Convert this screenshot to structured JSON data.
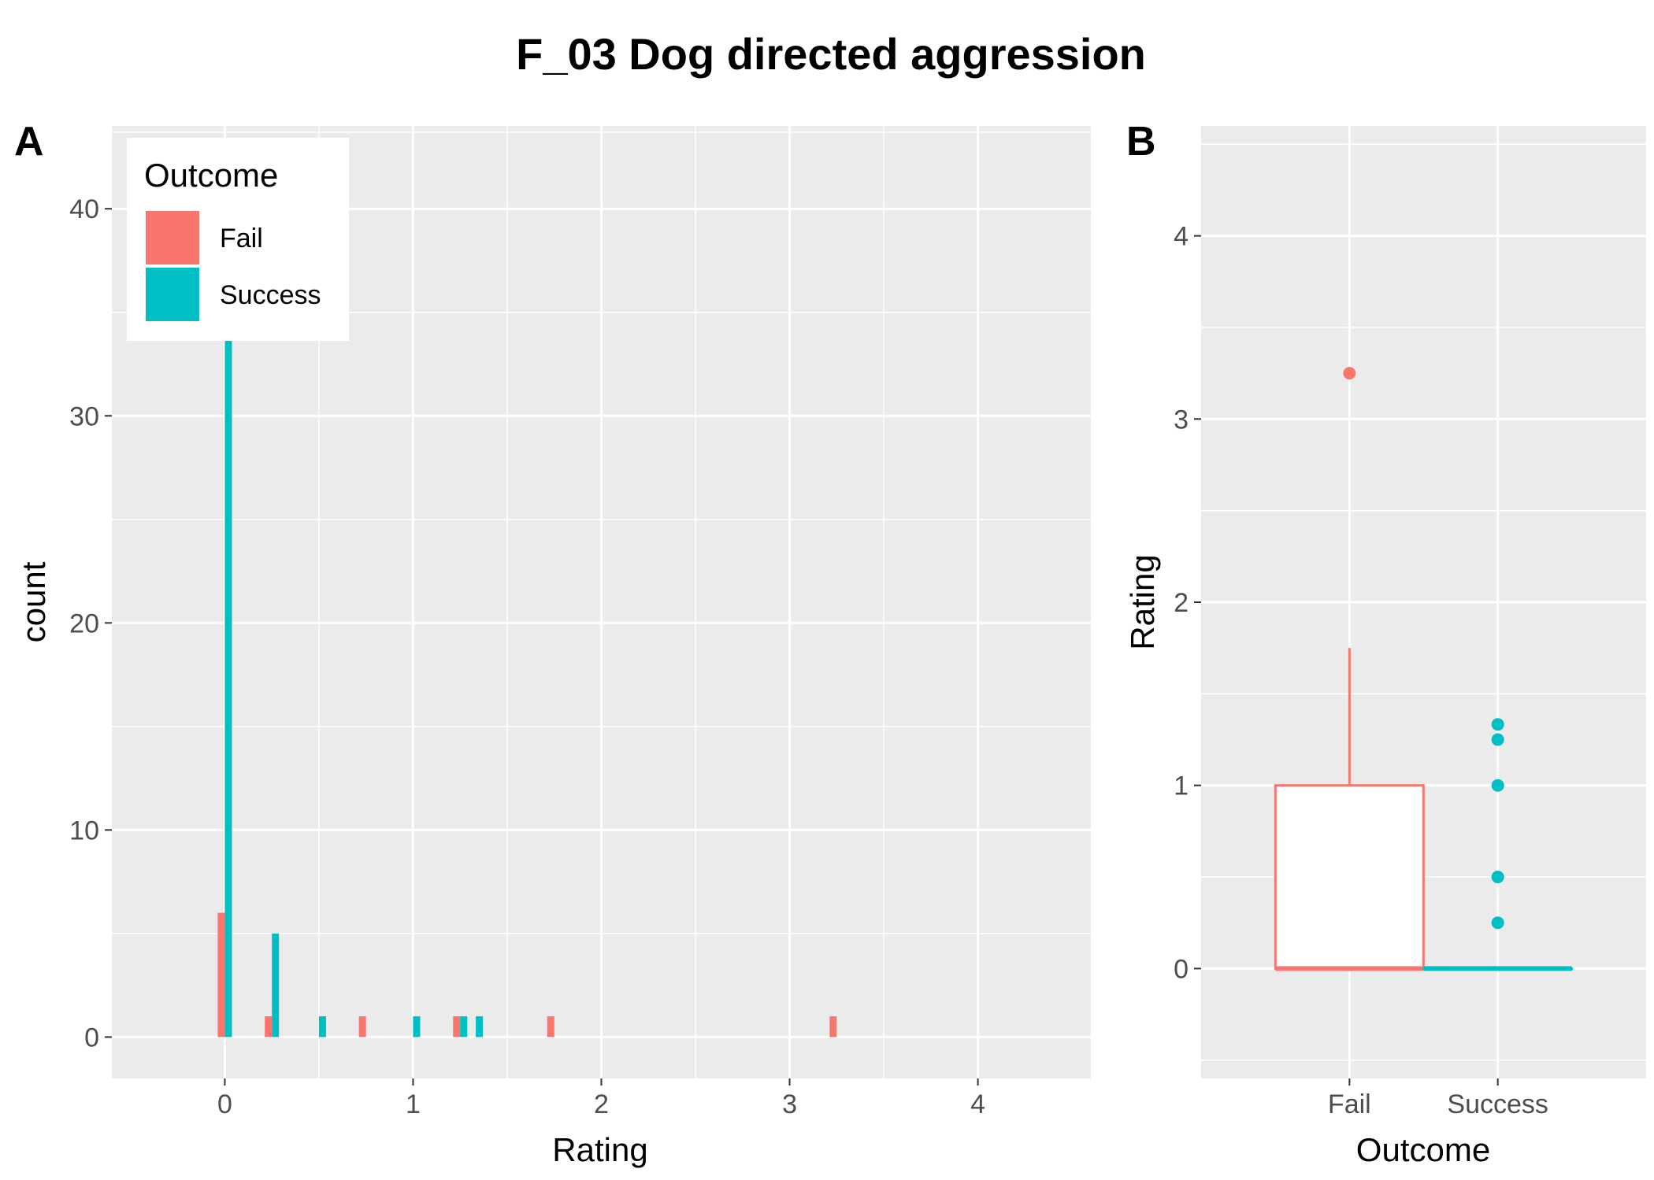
{
  "title": "F_03 Dog directed aggression",
  "colors": {
    "Fail": "#F8766D",
    "Success": "#00BFC4",
    "panel_bg": "#EBEBEB",
    "grid": "#FFFFFF"
  },
  "chart_data": [
    {
      "panel": "A",
      "type": "bar",
      "xlabel": "Rating",
      "ylabel": "count",
      "xlim": [
        -0.6,
        4.6
      ],
      "ylim": [
        -2,
        44
      ],
      "x_ticks": [
        0,
        1,
        2,
        3,
        4
      ],
      "y_ticks": [
        0,
        10,
        20,
        30,
        40
      ],
      "legend": {
        "title": "Outcome",
        "position": "top-left",
        "entries": [
          "Fail",
          "Success"
        ]
      },
      "series": [
        {
          "name": "Fail",
          "color": "#F8766D",
          "points": [
            {
              "x": 0,
              "count": 6
            },
            {
              "x": 0.25,
              "count": 1
            },
            {
              "x": 0.75,
              "count": 1
            },
            {
              "x": 1.25,
              "count": 1
            },
            {
              "x": 1.75,
              "count": 1
            },
            {
              "x": 3.25,
              "count": 1
            }
          ]
        },
        {
          "name": "Success",
          "color": "#00BFC4",
          "points": [
            {
              "x": 0,
              "count": 35
            },
            {
              "x": 0.25,
              "count": 5
            },
            {
              "x": 0.5,
              "count": 1
            },
            {
              "x": 1,
              "count": 1
            },
            {
              "x": 1.333,
              "count": 1
            },
            {
              "x": 1.25,
              "count": 1
            }
          ]
        }
      ]
    },
    {
      "panel": "B",
      "type": "box",
      "xlabel": "Outcome",
      "ylabel": "Rating",
      "ylim": [
        -0.6,
        4.6
      ],
      "y_ticks": [
        0,
        1,
        2,
        3,
        4
      ],
      "categories": [
        "Fail",
        "Success"
      ],
      "boxes": [
        {
          "name": "Fail",
          "color": "#F8766D",
          "q1": 0,
          "median": 0,
          "q3": 1,
          "whisker_low": 0,
          "whisker_high": 1.75,
          "outliers": [
            3.25
          ]
        },
        {
          "name": "Success",
          "color": "#00BFC4",
          "q1": 0,
          "median": 0,
          "q3": 0,
          "whisker_low": 0,
          "whisker_high": 0,
          "outliers": [
            0.25,
            0.5,
            1,
            1.25,
            1.333
          ]
        }
      ]
    }
  ]
}
